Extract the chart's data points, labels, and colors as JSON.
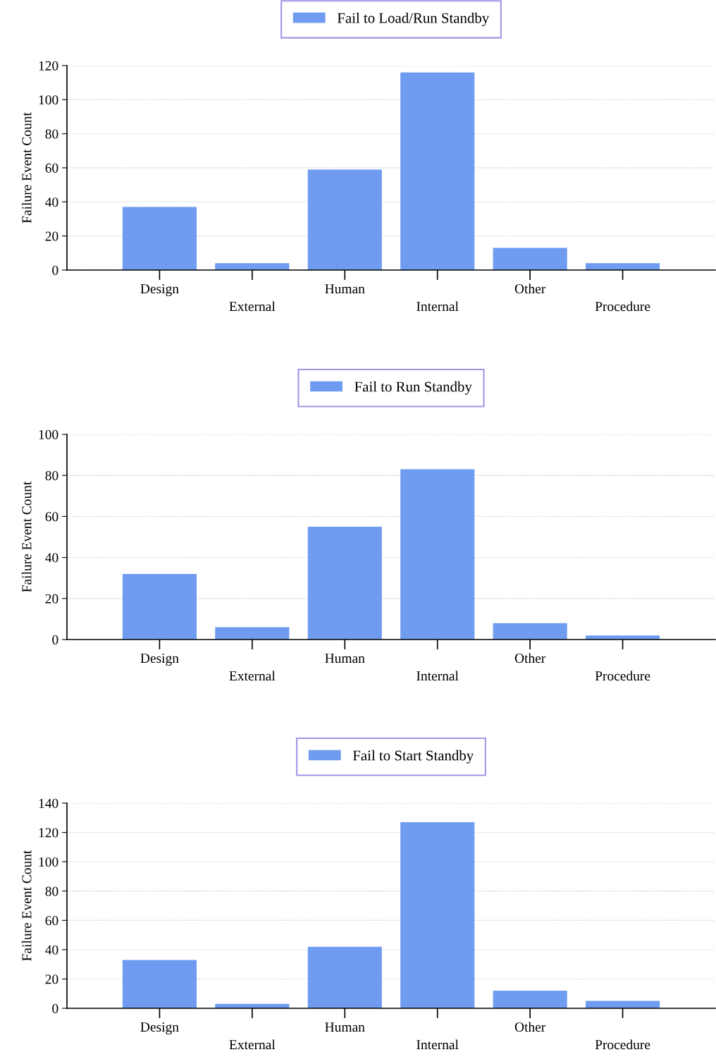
{
  "chart_data": [
    {
      "type": "bar",
      "ylabel": "Failure Event Count",
      "categories": [
        "Design",
        "External",
        "Human",
        "Internal",
        "Other",
        "Procedure"
      ],
      "series": [
        {
          "name": "Fail to Load/Run Standby",
          "color": "#6f9cf0",
          "values": [
            37,
            4,
            59,
            116,
            13,
            4
          ]
        }
      ],
      "ylim": [
        0,
        120
      ],
      "yticks": [
        0,
        20,
        40,
        60,
        80,
        100,
        120
      ],
      "grid": "y",
      "legend": "top"
    },
    {
      "type": "bar",
      "ylabel": "Failure Event Count",
      "categories": [
        "Design",
        "External",
        "Human",
        "Internal",
        "Other",
        "Procedure"
      ],
      "series": [
        {
          "name": "Fail to Run Standby",
          "color": "#6f9cf0",
          "values": [
            32,
            6,
            55,
            83,
            8,
            2
          ]
        }
      ],
      "ylim": [
        0,
        100
      ],
      "yticks": [
        0,
        20,
        40,
        60,
        80,
        100
      ],
      "grid": "y",
      "legend": "top"
    },
    {
      "type": "bar",
      "ylabel": "Failure Event Count",
      "categories": [
        "Design",
        "External",
        "Human",
        "Internal",
        "Other",
        "Procedure"
      ],
      "series": [
        {
          "name": "Fail to Start Standby",
          "color": "#6f9cf0",
          "values": [
            33,
            3,
            42,
            127,
            12,
            5
          ]
        }
      ],
      "ylim": [
        0,
        140
      ],
      "yticks": [
        0,
        20,
        40,
        60,
        80,
        100,
        120,
        140
      ],
      "grid": "y",
      "legend": "top"
    }
  ]
}
